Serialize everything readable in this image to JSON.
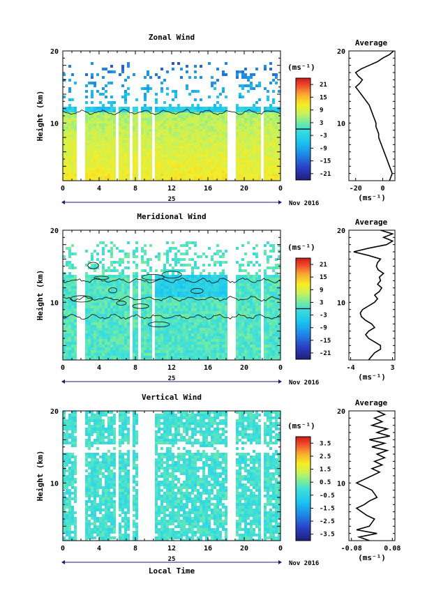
{
  "footer": {
    "xlabel": "Local Time"
  },
  "units_label": "(ms⁻¹)",
  "chart_data": [
    {
      "type": "heatmap",
      "title": "Zonal Wind",
      "ylabel": "Height (km)",
      "ylim": [
        2,
        20
      ],
      "yticks": [
        "20",
        "10"
      ],
      "ytick_values": [
        20,
        10
      ],
      "xlim": [
        0,
        24
      ],
      "xticks": [
        "0",
        "4",
        "8",
        "12",
        "16",
        "20",
        "0"
      ],
      "xtick_values": [
        0,
        4,
        8,
        12,
        16,
        20,
        24
      ],
      "day_label": "25",
      "date_label": "Nov 2016",
      "colorbar": {
        "label": "(ms⁻¹)",
        "ticks": [
          "21",
          "15",
          "9",
          "3",
          "-3",
          "-9",
          "-15",
          "-21"
        ],
        "tick_values": [
          21,
          15,
          9,
          3,
          -3,
          -9,
          -15,
          -21
        ],
        "range": [
          -24,
          24
        ],
        "zero_line": true
      },
      "data_gaps": [
        [
          1.4,
          2.3
        ],
        [
          5.7,
          6.0
        ],
        [
          7.3,
          7.6
        ],
        [
          8.1,
          8.4
        ],
        [
          9.6,
          10.0
        ],
        [
          11.8,
          12.0
        ],
        [
          18.0,
          18.8
        ],
        [
          21.6,
          22.0
        ]
      ],
      "profile": {
        "title": "Average",
        "xlabel": "(ms⁻¹)",
        "xticks": [
          "-20",
          "0"
        ],
        "xtick_values": [
          -20,
          0
        ],
        "xlim": [
          -25,
          9
        ],
        "ylim": [
          2,
          20
        ],
        "yticks": [
          "20",
          "10"
        ],
        "ytick_values": [
          20,
          10
        ],
        "x": [
          5,
          6,
          7,
          6,
          5,
          4,
          3,
          2,
          1,
          0,
          -1,
          -2,
          -3,
          -3,
          -4,
          -5,
          -5,
          -6,
          -7,
          -8,
          -9,
          -10,
          -12,
          -14,
          -16,
          -18,
          -20,
          -17,
          -15,
          -18,
          -20,
          -16,
          -10,
          -4,
          0,
          5,
          8
        ],
        "y": [
          2,
          2.5,
          3,
          3.5,
          4,
          4.5,
          5,
          5.5,
          6,
          6.5,
          7,
          7.5,
          8,
          8.5,
          9,
          9.5,
          10,
          10.5,
          11,
          11.5,
          12,
          12.5,
          13,
          13.5,
          14,
          14.5,
          15,
          15.5,
          16,
          16.5,
          17,
          17.5,
          18,
          18.5,
          19,
          19.5,
          20
        ]
      }
    },
    {
      "type": "heatmap",
      "title": "Meridional Wind",
      "ylabel": "Height (km)",
      "ylim": [
        2,
        20
      ],
      "yticks": [
        "20",
        "10"
      ],
      "ytick_values": [
        20,
        10
      ],
      "xlim": [
        0,
        24
      ],
      "xticks": [
        "0",
        "4",
        "8",
        "12",
        "16",
        "20",
        "0"
      ],
      "xtick_values": [
        0,
        4,
        8,
        12,
        16,
        20,
        24
      ],
      "day_label": "25",
      "date_label": "Nov 2016",
      "colorbar": {
        "label": "(ms⁻¹)",
        "ticks": [
          "21",
          "15",
          "9",
          "3",
          "-3",
          "-9",
          "-15",
          "-21"
        ],
        "tick_values": [
          21,
          15,
          9,
          3,
          -3,
          -9,
          -15,
          -21
        ],
        "range": [
          -24,
          24
        ],
        "zero_line": true
      },
      "data_gaps": [
        [
          1.4,
          2.3
        ],
        [
          7.3,
          7.6
        ],
        [
          8.1,
          8.4
        ],
        [
          9.6,
          10.0
        ],
        [
          11.8,
          12.0
        ],
        [
          18.0,
          18.8
        ],
        [
          21.6,
          22.0
        ]
      ],
      "profile": {
        "title": "Average",
        "xlabel": "(ms⁻¹)",
        "xticks": [
          "-4",
          "3"
        ],
        "xtick_values": [
          -4,
          3
        ],
        "xlim": [
          -4.3,
          3.4
        ],
        "ylim": [
          2,
          20
        ],
        "yticks": [
          "20",
          "10"
        ],
        "ytick_values": [
          20,
          10
        ],
        "x": [
          -1,
          -0.5,
          0,
          1,
          1,
          0,
          -1,
          -1.5,
          -1,
          0,
          -0.5,
          -1.5,
          -2.2,
          -2.4,
          -2,
          -1,
          0,
          0.5,
          0,
          0.8,
          1.2,
          0.5,
          1,
          0.8,
          1.5,
          0.6,
          0.3,
          0.5,
          1,
          -1,
          -3.5,
          -1,
          2,
          3,
          1.5,
          3,
          1
        ],
        "y": [
          2,
          2.5,
          3,
          3.5,
          4,
          4.5,
          5,
          5.5,
          6,
          6.5,
          7,
          7.5,
          8,
          8.5,
          9,
          9.5,
          10,
          10.5,
          11,
          11.5,
          12,
          12.5,
          13,
          13.5,
          14,
          14.5,
          15,
          15.5,
          16,
          16.5,
          17,
          17.5,
          18,
          18.5,
          19,
          19.5,
          20
        ]
      }
    },
    {
      "type": "heatmap",
      "title": "Vertical Wind",
      "ylabel": "Height (km)",
      "ylim": [
        2,
        20
      ],
      "yticks": [
        "20",
        "10"
      ],
      "ytick_values": [
        20,
        10
      ],
      "xlim": [
        0,
        24
      ],
      "xticks": [
        "0",
        "4",
        "8",
        "12",
        "16",
        "20",
        "0"
      ],
      "xtick_values": [
        0,
        4,
        8,
        12,
        16,
        20,
        24
      ],
      "day_label": "25",
      "date_label": "Nov 2016",
      "xlabel": "Local Time",
      "colorbar": {
        "label": "(ms⁻¹)",
        "ticks": [
          "3.5",
          "2.5",
          "1.5",
          "0.5",
          "-0.5",
          "-1.5",
          "-2.5",
          "-3.5"
        ],
        "tick_values": [
          3.5,
          2.5,
          1.5,
          0.5,
          -0.5,
          -1.5,
          -2.5,
          -3.5
        ],
        "range": [
          -4,
          4
        ],
        "zero_line": false
      },
      "data_gaps": [
        [
          1.4,
          2.3
        ],
        [
          5.7,
          5.9
        ],
        [
          7.3,
          7.6
        ],
        [
          8.1,
          9.9
        ],
        [
          11.8,
          12.0
        ],
        [
          18.0,
          18.8
        ],
        [
          21.6,
          22.0
        ]
      ],
      "profile": {
        "title": "Average",
        "xlabel": "(ms⁻¹)",
        "xticks": [
          "-0.08",
          "0.08"
        ],
        "xtick_values": [
          -0.08,
          0.08
        ],
        "xlim": [
          -0.09,
          0.09
        ],
        "ylim": [
          2,
          20
        ],
        "yticks": [
          "20",
          "10"
        ],
        "ytick_values": [
          20,
          10
        ],
        "x": [
          -0.01,
          -0.05,
          0.02,
          -0.06,
          -0.01,
          0.0,
          0.01,
          -0.02,
          -0.04,
          -0.06,
          -0.03,
          -0.01,
          0.02,
          0.01,
          0.0,
          -0.03,
          -0.06,
          -0.03,
          0.0,
          0.03,
          0.0,
          0.04,
          0.01,
          0.05,
          0.02,
          0.06,
          0.0,
          0.05,
          -0.01,
          0.07,
          0.02,
          0.06,
          0.0,
          0.04,
          0.01,
          0.05,
          0.02
        ],
        "y": [
          2,
          2.5,
          3,
          3.5,
          4,
          4.5,
          5,
          5.5,
          6,
          6.5,
          7,
          7.5,
          8,
          8.5,
          9,
          9.5,
          10,
          10.5,
          11,
          11.5,
          12,
          12.5,
          13,
          13.5,
          14,
          14.5,
          15,
          15.5,
          16,
          16.5,
          17,
          17.5,
          18,
          18.5,
          19,
          19.5,
          20
        ]
      }
    }
  ]
}
